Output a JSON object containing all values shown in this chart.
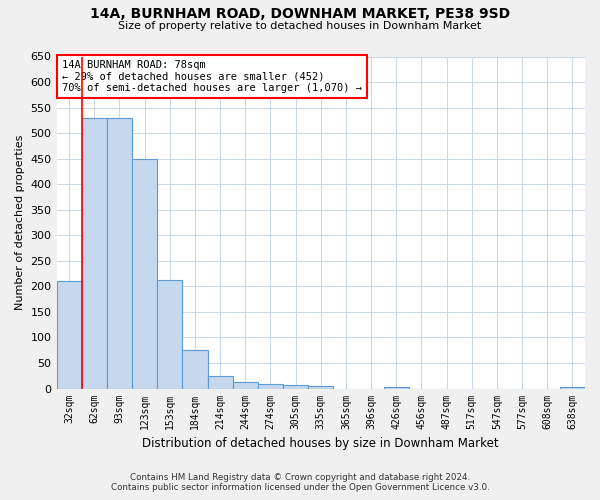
{
  "title1": "14A, BURNHAM ROAD, DOWNHAM MARKET, PE38 9SD",
  "title2": "Size of property relative to detached houses in Downham Market",
  "xlabel": "Distribution of detached houses by size in Downham Market",
  "ylabel": "Number of detached properties",
  "categories": [
    "32sqm",
    "62sqm",
    "93sqm",
    "123sqm",
    "153sqm",
    "184sqm",
    "214sqm",
    "244sqm",
    "274sqm",
    "305sqm",
    "335sqm",
    "365sqm",
    "396sqm",
    "426sqm",
    "456sqm",
    "487sqm",
    "517sqm",
    "547sqm",
    "577sqm",
    "608sqm",
    "638sqm"
  ],
  "values": [
    210,
    530,
    530,
    450,
    213,
    75,
    25,
    13,
    9,
    6,
    5,
    0,
    0,
    4,
    0,
    0,
    0,
    0,
    0,
    0,
    4
  ],
  "bar_color": "#c5d8ed",
  "bar_edge_color": "#5b9bd5",
  "property_line_x": 0.5,
  "annotation_label": "14A BURNHAM ROAD: 78sqm",
  "annotation_line1": "← 29% of detached houses are smaller (452)",
  "annotation_line2": "70% of semi-detached houses are larger (1,070) →",
  "ylim": [
    0,
    650
  ],
  "yticks": [
    0,
    50,
    100,
    150,
    200,
    250,
    300,
    350,
    400,
    450,
    500,
    550,
    600,
    650
  ],
  "footer1": "Contains HM Land Registry data © Crown copyright and database right 2024.",
  "footer2": "Contains public sector information licensed under the Open Government Licence v3.0.",
  "bg_color": "#f0f0f0",
  "plot_bg_color": "#ffffff",
  "grid_color": "#c8d8e8"
}
